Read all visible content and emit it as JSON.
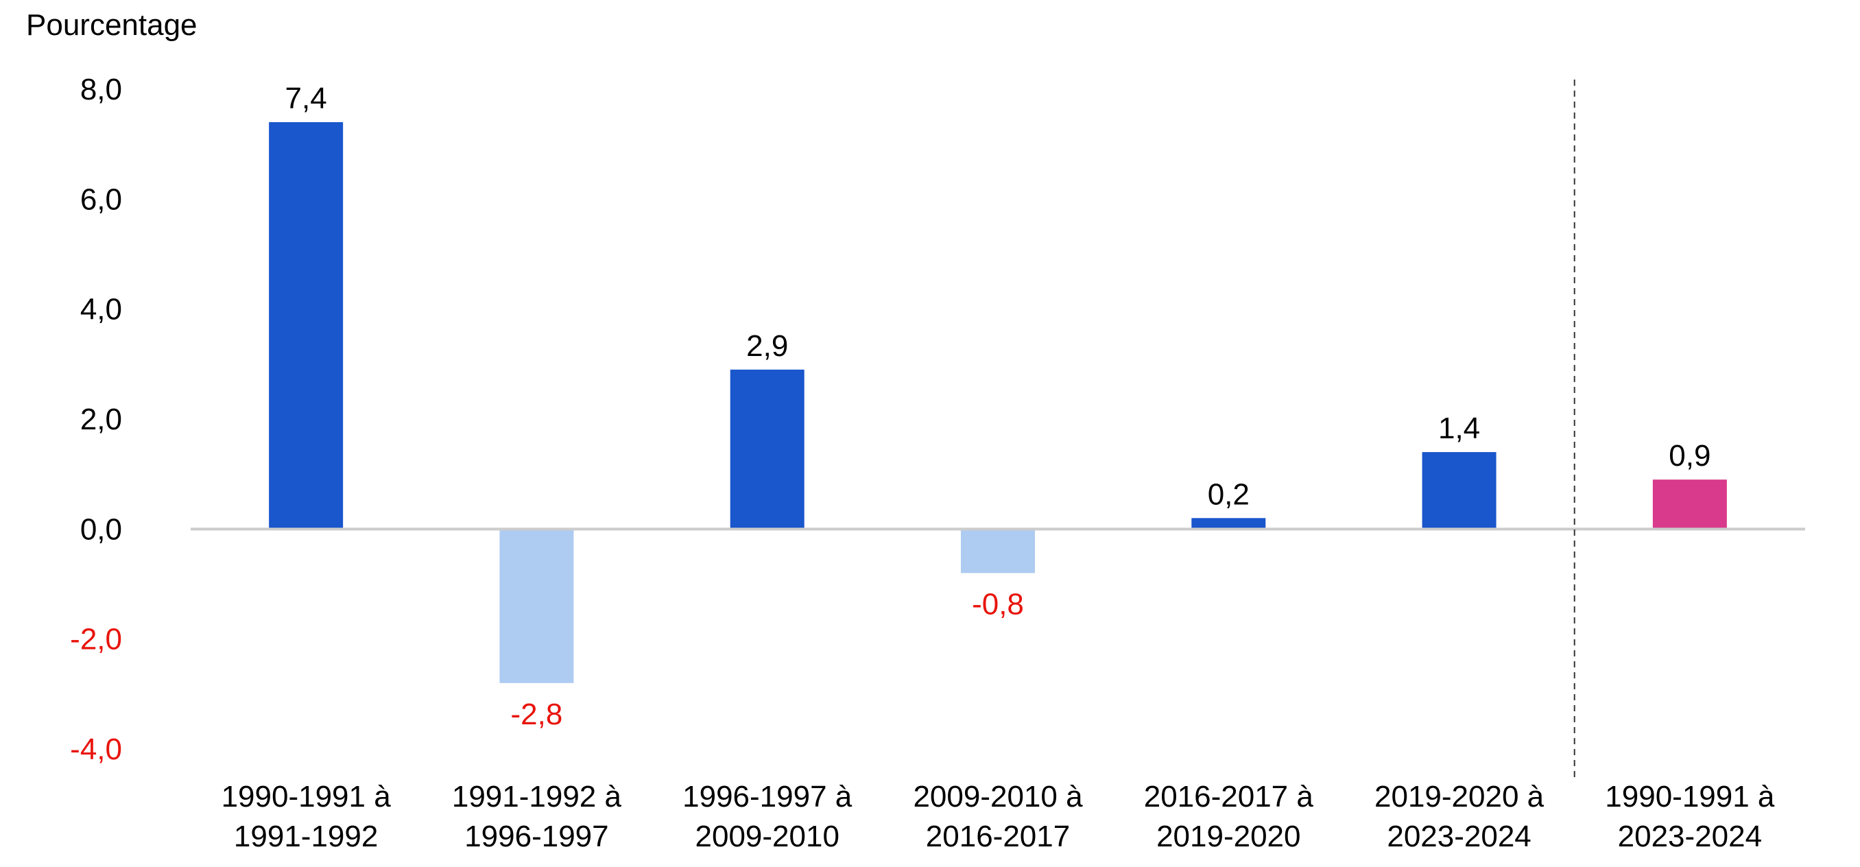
{
  "chart_data": {
    "type": "bar",
    "ylabel": "Pourcentage",
    "ylim": [
      -4.0,
      8.0
    ],
    "yticks": [
      {
        "value": 8.0,
        "label": "8,0"
      },
      {
        "value": 6.0,
        "label": "6,0"
      },
      {
        "value": 4.0,
        "label": "4,0"
      },
      {
        "value": 2.0,
        "label": "2,0"
      },
      {
        "value": 0.0,
        "label": "0,0"
      },
      {
        "value": -2.0,
        "label": "-2,0"
      },
      {
        "value": -4.0,
        "label": "-4,0"
      }
    ],
    "grid": false,
    "legend": "none",
    "separator_after_index": 5,
    "categories": [
      [
        "1990-1991 à",
        "1991-1992"
      ],
      [
        "1991-1992 à",
        "1996-1997"
      ],
      [
        "1996-1997 à",
        "2009-2010"
      ],
      [
        "2009-2010 à",
        "2016-2017"
      ],
      [
        "2016-2017 à",
        "2019-2020"
      ],
      [
        "2019-2020 à",
        "2023-2024"
      ],
      [
        "1990-1991 à",
        "2023-2024"
      ]
    ],
    "values": [
      7.4,
      -2.8,
      2.9,
      -0.8,
      0.2,
      1.4,
      0.9
    ],
    "value_labels": [
      "7,4",
      "-2,8",
      "2,9",
      "-0,8",
      "0,2",
      "1,4",
      "0,9"
    ],
    "colors": {
      "positive": "#1a56cc",
      "negative": "#aecbf2",
      "total": "#d93a8b",
      "negative_text": "#e8140c",
      "text": "#000000",
      "axis": "#cccccc",
      "separator": "#333333"
    }
  }
}
